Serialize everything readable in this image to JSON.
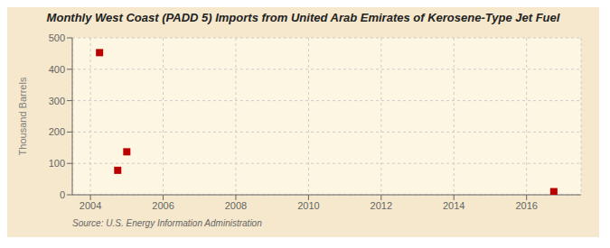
{
  "chart_data": {
    "type": "scatter",
    "title": "Monthly West Coast (PADD 5) Imports from United Arab Emirates of Kerosene-Type Jet Fuel",
    "ylabel": "Thousand Barrels",
    "annotations": [
      "Source: U.S. Energy Information Administration"
    ],
    "x": [
      2004.25,
      2004.75,
      2005.0,
      2016.75
    ],
    "values": [
      453,
      78,
      137,
      10
    ],
    "color": "#bb0000",
    "marker": "square",
    "xlim": [
      2003.5,
      2017.5
    ],
    "ylim": [
      0,
      500
    ],
    "xticks": [
      2004,
      2006,
      2008,
      2010,
      2012,
      2014,
      2016
    ],
    "yticks": [
      0,
      100,
      200,
      300,
      400,
      500
    ],
    "grid": true
  }
}
